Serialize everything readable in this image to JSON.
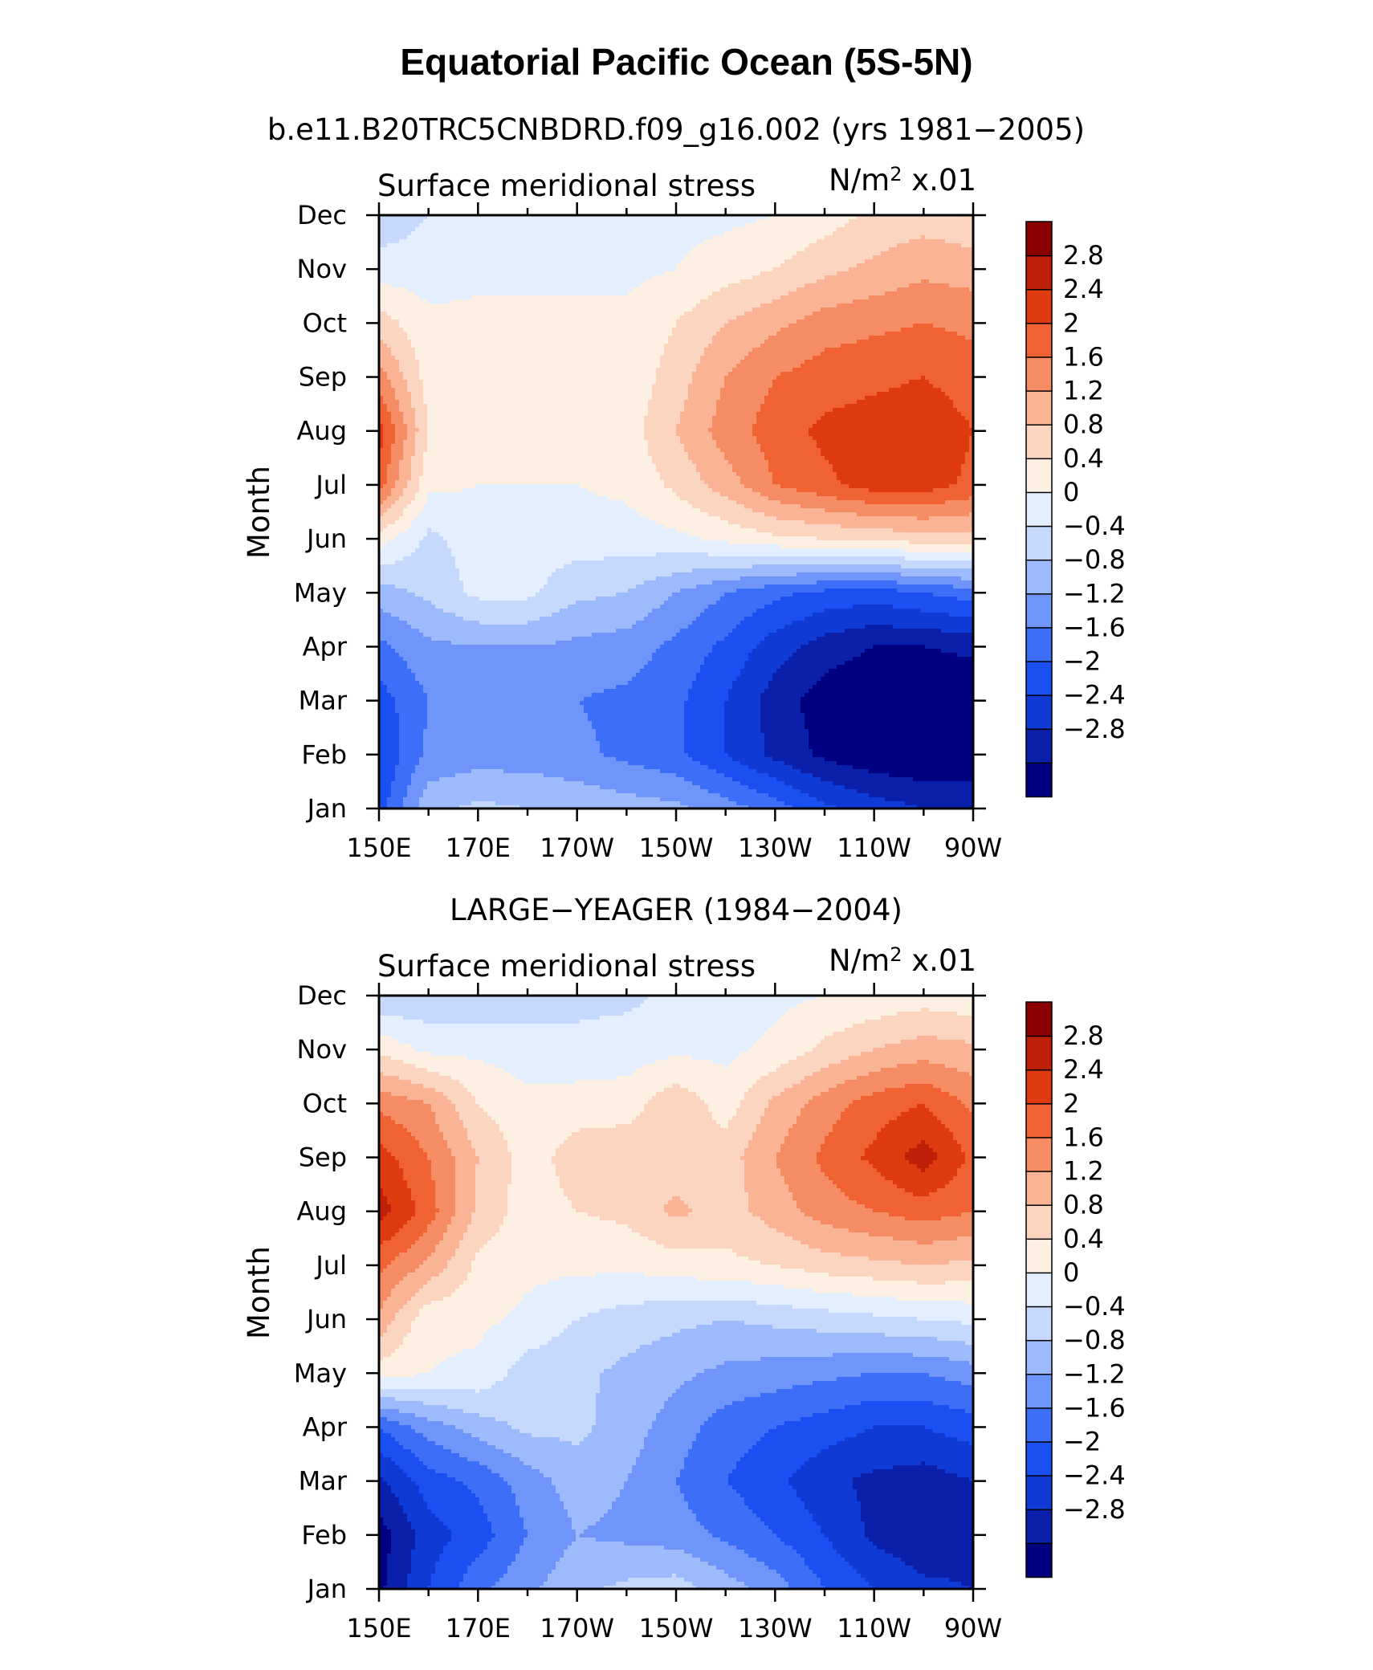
{
  "figure": {
    "title": "Equatorial Pacific Ocean (5S-5N)",
    "colors": [
      "#000080",
      "#0a1faa",
      "#0f3ad6",
      "#1a4ff2",
      "#3d6ef7",
      "#6f95fa",
      "#9dbafc",
      "#c6d9fd",
      "#e3eefe",
      "#fdf0e3",
      "#fcd5c0",
      "#fab394",
      "#f68c63",
      "#f06233",
      "#e03a10",
      "#bf2008",
      "#8c0000"
    ],
    "colorbar_labels": [
      "2.8",
      "2.4",
      "2",
      "1.6",
      "1.2",
      "0.8",
      "0.4",
      "0",
      "−0.4",
      "−0.8",
      "−1.2",
      "−1.6",
      "−2",
      "−2.4",
      "−2.8"
    ]
  },
  "chart_data": [
    {
      "type": "heatmap",
      "subtitle": "b.e11.B20TRC5CNBDRD.f09_g16.002 (yrs 1981−2005)",
      "left_label": "Surface meridional stress",
      "right_label": "N/m² x.01",
      "ylabel": "Month",
      "xlabel": "",
      "x_tick_labels": [
        "150E",
        "170E",
        "170W",
        "150W",
        "130W",
        "110W",
        "90W"
      ],
      "y_tick_labels": [
        "Jan",
        "Feb",
        "Mar",
        "Apr",
        "May",
        "Jun",
        "Jul",
        "Aug",
        "Sep",
        "Oct",
        "Nov",
        "Dec"
      ],
      "x": [
        150,
        160,
        170,
        180,
        190,
        200,
        210,
        220,
        230,
        240,
        250,
        260,
        270
      ],
      "y": [
        "Jan",
        "Feb",
        "Mar",
        "Apr",
        "May",
        "Jun",
        "Jul",
        "Aug",
        "Sep",
        "Oct",
        "Nov",
        "Dec"
      ],
      "levels": [
        -2.8,
        -2.4,
        -2,
        -1.6,
        -1.2,
        -0.8,
        -0.4,
        0,
        0.4,
        0.8,
        1.2,
        1.6,
        2,
        2.4,
        2.8
      ],
      "z": [
        [
          -1.8,
          -0.5,
          -0.3,
          -0.4,
          -0.5,
          -0.6,
          -0.7,
          -1.0,
          -1.4,
          -1.9,
          -2.2,
          -2.4,
          -2.4
        ],
        [
          -2.0,
          -1.1,
          -1.0,
          -1.0,
          -1.1,
          -1.3,
          -1.5,
          -2.0,
          -2.5,
          -2.9,
          -3.1,
          -3.2,
          -3.2
        ],
        [
          -1.8,
          -1.2,
          -1.2,
          -1.2,
          -1.2,
          -1.3,
          -1.5,
          -2.0,
          -2.6,
          -3.0,
          -3.2,
          -3.2,
          -3.2
        ],
        [
          -1.3,
          -0.9,
          -0.8,
          -0.8,
          -0.9,
          -1.0,
          -1.3,
          -1.7,
          -2.2,
          -2.6,
          -2.8,
          -2.8,
          -2.7
        ],
        [
          -0.6,
          -0.3,
          0.1,
          0.1,
          -0.3,
          -0.4,
          -0.8,
          -1.2,
          -1.5,
          -1.7,
          -1.8,
          -1.6,
          -1.4
        ],
        [
          0.6,
          -0.1,
          0.2,
          0.2,
          0.2,
          0.2,
          0.3,
          0.5,
          0.7,
          0.8,
          0.9,
          1.0,
          1.0
        ],
        [
          2.2,
          0.5,
          0.4,
          0.4,
          0.4,
          0.5,
          0.9,
          1.4,
          2.0,
          2.3,
          2.6,
          2.6,
          2.3
        ],
        [
          2.6,
          0.8,
          0.5,
          0.5,
          0.5,
          0.6,
          1.2,
          1.8,
          2.2,
          2.5,
          2.6,
          2.7,
          2.4
        ],
        [
          1.8,
          0.6,
          0.5,
          0.5,
          0.5,
          0.5,
          1.0,
          1.6,
          2.0,
          2.2,
          2.3,
          2.4,
          2.2
        ],
        [
          1.0,
          0.5,
          0.5,
          0.5,
          0.5,
          0.5,
          0.8,
          1.2,
          1.5,
          1.8,
          1.9,
          2.0,
          1.9
        ],
        [
          0.2,
          0.2,
          0.3,
          0.3,
          0.3,
          0.3,
          0.4,
          0.6,
          0.8,
          1.1,
          1.3,
          1.5,
          1.4
        ],
        [
          -0.3,
          0.0,
          0.1,
          0.1,
          0.1,
          0.2,
          0.3,
          0.3,
          0.4,
          0.6,
          0.9,
          1.0,
          0.9
        ]
      ]
    },
    {
      "type": "heatmap",
      "subtitle": "LARGE−YEAGER (1984−2004)",
      "left_label": "Surface meridional stress",
      "right_label": "N/m² x.01",
      "ylabel": "Month",
      "xlabel": "",
      "x_tick_labels": [
        "150E",
        "170E",
        "170W",
        "150W",
        "130W",
        "110W",
        "90W"
      ],
      "y_tick_labels": [
        "Jan",
        "Feb",
        "Mar",
        "Apr",
        "May",
        "Jun",
        "Jul",
        "Aug",
        "Sep",
        "Oct",
        "Nov",
        "Dec"
      ],
      "x": [
        150,
        160,
        170,
        180,
        190,
        200,
        210,
        220,
        230,
        240,
        250,
        260,
        270
      ],
      "y": [
        "Jan",
        "Feb",
        "Mar",
        "Apr",
        "May",
        "Jun",
        "Jul",
        "Aug",
        "Sep",
        "Oct",
        "Nov",
        "Dec"
      ],
      "levels": [
        -2.8,
        -2.4,
        -2,
        -1.6,
        -1.2,
        -0.8,
        -0.4,
        0,
        0.4,
        0.8,
        1.2,
        1.6,
        2,
        2.4,
        2.8
      ],
      "z": [
        [
          -2.9,
          -2.0,
          -1.3,
          -0.9,
          -0.5,
          -0.3,
          -0.2,
          -0.6,
          -1.0,
          -1.6,
          -2.0,
          -2.3,
          -2.4
        ],
        [
          -3.0,
          -2.2,
          -1.8,
          -1.2,
          -0.8,
          -0.9,
          -1.0,
          -1.3,
          -1.6,
          -2.0,
          -2.5,
          -2.7,
          -2.6
        ],
        [
          -2.5,
          -1.8,
          -1.5,
          -1.0,
          -0.6,
          -0.8,
          -1.2,
          -1.6,
          -1.9,
          -2.3,
          -2.5,
          -2.6,
          -2.4
        ],
        [
          -1.6,
          -1.0,
          -0.6,
          -0.3,
          -0.3,
          -0.6,
          -1.0,
          -1.4,
          -1.6,
          -1.8,
          -2.0,
          -2.0,
          -1.8
        ],
        [
          0.6,
          0.4,
          0.3,
          -0.2,
          -0.3,
          -0.5,
          -0.7,
          -0.9,
          -1.0,
          -1.1,
          -1.2,
          -1.2,
          -1.0
        ],
        [
          1.5,
          0.5,
          0.5,
          0.3,
          0.0,
          -0.2,
          -0.3,
          -0.4,
          -0.3,
          -0.2,
          -0.1,
          0.0,
          0.1
        ],
        [
          2.1,
          1.5,
          0.7,
          0.5,
          0.5,
          0.5,
          0.6,
          0.7,
          0.8,
          1.0,
          1.1,
          1.2,
          1.1
        ],
        [
          3.0,
          2.2,
          1.1,
          0.6,
          0.8,
          0.9,
          1.3,
          1.0,
          1.4,
          1.8,
          2.0,
          2.2,
          2.0
        ],
        [
          2.6,
          2.0,
          1.2,
          0.6,
          1.0,
          1.1,
          1.0,
          1.0,
          1.6,
          2.1,
          2.5,
          3.0,
          2.3
        ],
        [
          1.9,
          1.6,
          0.8,
          0.5,
          0.6,
          0.6,
          1.1,
          0.6,
          1.3,
          1.8,
          2.2,
          2.4,
          1.9
        ],
        [
          0.7,
          0.3,
          0.3,
          0.2,
          0.1,
          0.2,
          0.3,
          0.3,
          0.5,
          0.9,
          1.2,
          1.4,
          1.3
        ],
        [
          -0.4,
          -0.3,
          -0.3,
          -0.2,
          -0.1,
          -0.1,
          0.1,
          0.2,
          0.3,
          0.4,
          0.5,
          0.6,
          0.5
        ]
      ]
    }
  ]
}
